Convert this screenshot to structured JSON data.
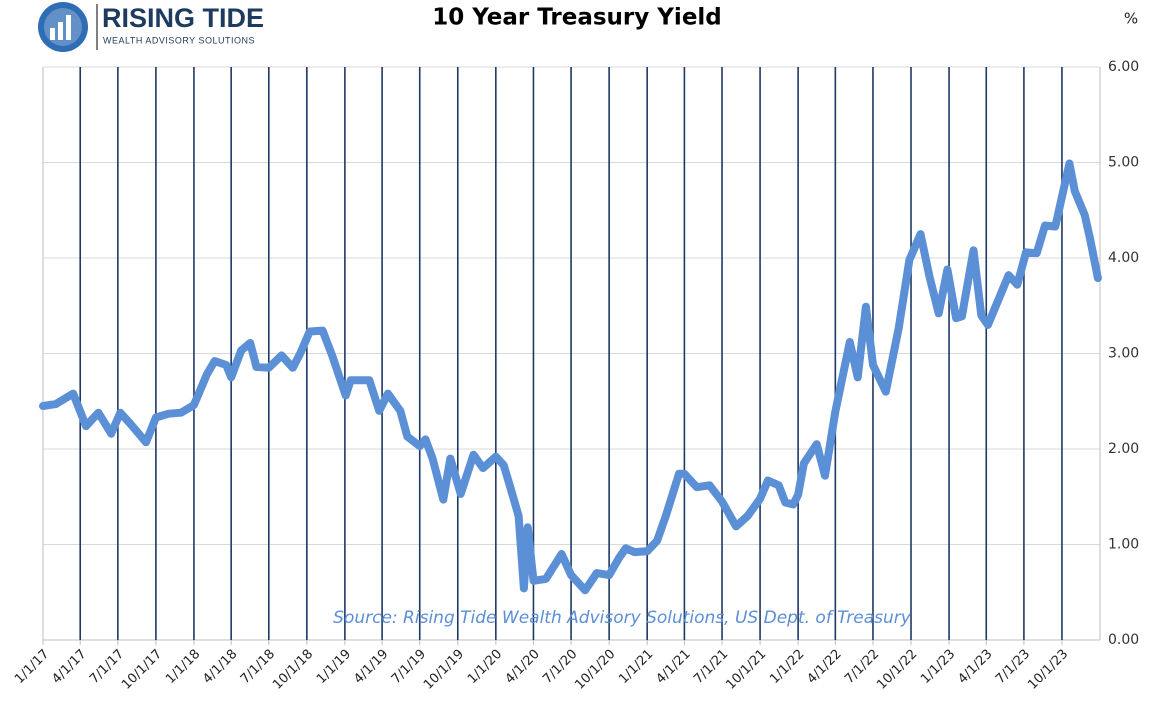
{
  "logo": {
    "name": "RISING TIDE",
    "tagline": "WEALTH ADVISORY SOLUTIONS"
  },
  "chart_data": {
    "type": "line",
    "title": "10 Year Treasury Yield",
    "y_unit": "%",
    "annotation": "Source: Rising Tide Wealth Advisory Solutions, US Dept. of Treasury",
    "x": [
      "1/1/17",
      "2/1/17",
      "3/15/17",
      "4/15/17",
      "5/15/17",
      "6/15/17",
      "7/7/17",
      "8/1/17",
      "9/7/17",
      "10/1/17",
      "11/1/17",
      "12/1/17",
      "1/1/18",
      "2/1/18",
      "2/20/18",
      "3/20/18",
      "4/1/18",
      "4/25/18",
      "5/17/18",
      "6/1/18",
      "7/1/18",
      "8/1/18",
      "8/28/18",
      "9/15/18",
      "10/8/18",
      "11/8/18",
      "12/1/18",
      "1/3/19",
      "1/15/19",
      "3/1/19",
      "3/25/19",
      "4/15/19",
      "5/15/19",
      "6/1/19",
      "7/1/19",
      "7/15/19",
      "8/1/19",
      "8/27/19",
      "9/13/19",
      "10/8/19",
      "11/8/19",
      "12/1/19",
      "1/1/20",
      "1/20/20",
      "2/5/20",
      "2/25/20",
      "3/9/20",
      "3/18/20",
      "4/1/20",
      "5/1/20",
      "6/8/20",
      "7/1/20",
      "8/4/20",
      "9/1/20",
      "10/1/20",
      "10/25/20",
      "11/10/20",
      "12/1/20",
      "1/1/21",
      "1/25/21",
      "2/15/21",
      "3/19/21",
      "4/1/21",
      "5/1/21",
      "6/1/21",
      "7/1/21",
      "8/4/21",
      "9/1/21",
      "10/1/21",
      "10/20/21",
      "11/15/21",
      "12/1/21",
      "12/20/21",
      "1/1/22",
      "1/15/22",
      "2/15/22",
      "3/7/22",
      "4/1/22",
      "5/6/22",
      "5/25/22",
      "6/14/22",
      "7/1/22",
      "8/1/22",
      "9/1/22",
      "9/27/22",
      "10/24/22",
      "11/15/22",
      "12/7/22",
      "12/28/22",
      "1/18/23",
      "2/1/23",
      "3/1/23",
      "3/20/23",
      "4/5/23",
      "5/1/23",
      "5/25/23",
      "6/15/23",
      "7/6/23",
      "8/1/23",
      "8/21/23",
      "9/15/23",
      "10/19/23",
      "11/1/23",
      "11/25/23",
      "12/8/23",
      "12/27/23"
    ],
    "series": [
      {
        "name": "10 Year Treasury Yield",
        "color": "#5b8fd6",
        "values": [
          2.45,
          2.47,
          2.58,
          2.24,
          2.38,
          2.16,
          2.38,
          2.26,
          2.07,
          2.33,
          2.37,
          2.38,
          2.46,
          2.78,
          2.92,
          2.88,
          2.75,
          3.03,
          3.11,
          2.86,
          2.85,
          2.98,
          2.85,
          3.0,
          3.23,
          3.24,
          2.98,
          2.56,
          2.72,
          2.72,
          2.4,
          2.58,
          2.4,
          2.13,
          2.03,
          2.1,
          1.9,
          1.47,
          1.9,
          1.53,
          1.94,
          1.8,
          1.92,
          1.83,
          1.6,
          1.3,
          0.54,
          1.18,
          0.62,
          0.64,
          0.9,
          0.68,
          0.52,
          0.7,
          0.68,
          0.86,
          0.96,
          0.92,
          0.93,
          1.04,
          1.3,
          1.74,
          1.74,
          1.6,
          1.62,
          1.45,
          1.19,
          1.3,
          1.48,
          1.67,
          1.62,
          1.44,
          1.42,
          1.52,
          1.85,
          2.05,
          1.72,
          2.39,
          3.12,
          2.75,
          3.49,
          2.88,
          2.6,
          3.26,
          3.98,
          4.25,
          3.8,
          3.42,
          3.88,
          3.37,
          3.39,
          4.08,
          3.4,
          3.3,
          3.57,
          3.82,
          3.72,
          4.06,
          4.05,
          4.34,
          4.33,
          4.99,
          4.7,
          4.45,
          4.2,
          3.79
        ]
      }
    ],
    "xlim": [
      "1/1/17",
      "1/1/24"
    ],
    "xticks": [
      "1/1/17",
      "4/1/17",
      "7/1/17",
      "10/1/17",
      "1/1/18",
      "4/1/18",
      "7/1/18",
      "10/1/18",
      "1/1/19",
      "4/1/19",
      "7/1/19",
      "10/1/19",
      "1/1/20",
      "4/1/20",
      "7/1/20",
      "10/1/20",
      "1/1/21",
      "4/1/21",
      "7/1/21",
      "10/1/21",
      "1/1/22",
      "4/1/22",
      "7/1/22",
      "10/1/22",
      "1/1/23",
      "4/1/23",
      "7/1/23",
      "10/1/23"
    ],
    "ylim": [
      0,
      6
    ],
    "yticks": [
      {
        "value": 0,
        "label": "0.00"
      },
      {
        "value": 1,
        "label": "1.00"
      },
      {
        "value": 2,
        "label": "2.00"
      },
      {
        "value": 3,
        "label": "3.00"
      },
      {
        "value": 4,
        "label": "4.00"
      },
      {
        "value": 5,
        "label": "5.00"
      },
      {
        "value": 6,
        "label": "6.00"
      }
    ],
    "grid": true
  }
}
